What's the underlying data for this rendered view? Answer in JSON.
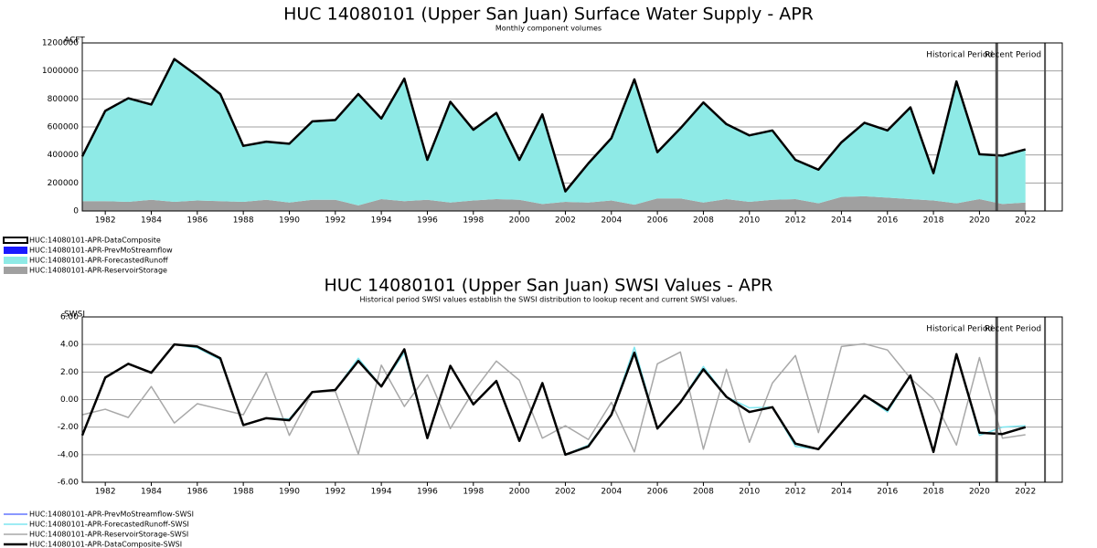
{
  "chart_data": [
    {
      "type": "area",
      "title": "HUC 14080101 (Upper San Juan) Surface Water Supply - APR",
      "subtitle": "Monthly component volumes",
      "ylabel": "ACFT",
      "x": [
        1981,
        1982,
        1983,
        1984,
        1985,
        1986,
        1987,
        1988,
        1989,
        1990,
        1991,
        1992,
        1993,
        1994,
        1995,
        1996,
        1997,
        1998,
        1999,
        2000,
        2001,
        2002,
        2003,
        2004,
        2005,
        2006,
        2007,
        2008,
        2009,
        2010,
        2011,
        2012,
        2013,
        2014,
        2015,
        2016,
        2017,
        2018,
        2019,
        2020,
        2021,
        2022
      ],
      "xlim": [
        1981,
        2023.6
      ],
      "xticks": [
        1982,
        1984,
        1986,
        1988,
        1990,
        1992,
        1994,
        1996,
        1998,
        2000,
        2002,
        2004,
        2006,
        2008,
        2010,
        2012,
        2014,
        2016,
        2018,
        2020,
        2022
      ],
      "ylim": [
        0,
        1200000
      ],
      "yticks": [
        0,
        200000,
        400000,
        600000,
        800000,
        1000000,
        1200000
      ],
      "grid": true,
      "stacked": true,
      "series": [
        {
          "name": "HUC:14080101-APR-DataComposite",
          "color": "#000000",
          "style": "line",
          "values": [
            390000,
            715000,
            805000,
            760000,
            1085000,
            965000,
            835000,
            465000,
            495000,
            480000,
            640000,
            650000,
            835000,
            660000,
            945000,
            365000,
            780000,
            580000,
            700000,
            365000,
            690000,
            140000,
            340000,
            520000,
            940000,
            420000,
            590000,
            775000,
            620000,
            540000,
            575000,
            365000,
            295000,
            490000,
            630000,
            575000,
            740000,
            270000,
            925000,
            405000,
            395000,
            440000
          ]
        },
        {
          "name": "HUC:14080101-APR-PrevMoStreamflow",
          "color": "#1a1aff",
          "style": "area",
          "values": [
            null,
            null,
            null,
            null,
            null,
            null,
            null,
            null,
            null,
            null,
            null,
            null,
            null,
            null,
            null,
            null,
            null,
            null,
            null,
            null,
            null,
            null,
            null,
            null,
            null,
            null,
            null,
            null,
            null,
            null,
            null,
            null,
            null,
            null,
            null,
            null,
            null,
            null,
            null,
            null,
            null,
            null
          ]
        },
        {
          "name": "HUC:14080101-APR-ForecastedRunoff",
          "color": "#8eeae6",
          "style": "area",
          "values": [
            320000,
            645000,
            740000,
            680000,
            1020000,
            890000,
            765000,
            400000,
            415000,
            420000,
            560000,
            570000,
            795000,
            575000,
            875000,
            285000,
            720000,
            505000,
            615000,
            285000,
            640000,
            75000,
            280000,
            445000,
            895000,
            330000,
            500000,
            715000,
            535000,
            475000,
            495000,
            280000,
            240000,
            390000,
            525000,
            480000,
            655000,
            195000,
            870000,
            320000,
            345000,
            380000
          ]
        },
        {
          "name": "HUC:14080101-APR-ReservoirStorage",
          "color": "#a0a0a0",
          "style": "area",
          "values": [
            70000,
            70000,
            65000,
            80000,
            65000,
            75000,
            70000,
            65000,
            80000,
            60000,
            80000,
            80000,
            40000,
            85000,
            70000,
            80000,
            60000,
            75000,
            85000,
            80000,
            50000,
            65000,
            60000,
            75000,
            45000,
            90000,
            90000,
            60000,
            85000,
            65000,
            80000,
            85000,
            55000,
            100000,
            105000,
            95000,
            85000,
            75000,
            55000,
            85000,
            50000,
            60000
          ]
        }
      ],
      "annotations": [
        {
          "text": "Historical Period",
          "x": 2020.75
        },
        {
          "text": "Recent Period",
          "x": 2022.85
        }
      ]
    },
    {
      "type": "line",
      "title": "HUC 14080101 (Upper San Juan) SWSI Values - APR",
      "subtitle": "Historical period SWSI values establish the SWSI distribution to lookup recent and current SWSI values.",
      "ylabel": "SWSI",
      "x": [
        1981,
        1982,
        1983,
        1984,
        1985,
        1986,
        1987,
        1988,
        1989,
        1990,
        1991,
        1992,
        1993,
        1994,
        1995,
        1996,
        1997,
        1998,
        1999,
        2000,
        2001,
        2002,
        2003,
        2004,
        2005,
        2006,
        2007,
        2008,
        2009,
        2010,
        2011,
        2012,
        2013,
        2014,
        2015,
        2016,
        2017,
        2018,
        2019,
        2020,
        2021,
        2022
      ],
      "xlim": [
        1981,
        2023.6
      ],
      "xticks": [
        1982,
        1984,
        1986,
        1988,
        1990,
        1992,
        1994,
        1996,
        1998,
        2000,
        2002,
        2004,
        2006,
        2008,
        2010,
        2012,
        2014,
        2016,
        2018,
        2020,
        2022
      ],
      "ylim": [
        -6,
        6
      ],
      "yticks": [
        {
          "value": -6,
          "label": "-6.00"
        },
        {
          "value": -4,
          "label": "-4.00"
        },
        {
          "value": -2,
          "label": "-2.00"
        },
        {
          "value": 0,
          "label": "0.00"
        },
        {
          "value": 2,
          "label": "2.00"
        },
        {
          "value": 4,
          "label": "4.00"
        },
        {
          "value": 6,
          "label": "6.00"
        }
      ],
      "grid": true,
      "series": [
        {
          "name": "HUC:14080101-APR-PrevMoStreamflow-SWSI",
          "color": "#1530ff",
          "width": 1,
          "values": [
            null,
            null,
            null,
            null,
            null,
            null,
            null,
            null,
            null,
            null,
            null,
            null,
            null,
            null,
            null,
            null,
            null,
            null,
            null,
            null,
            null,
            null,
            null,
            null,
            null,
            null,
            null,
            null,
            null,
            null,
            null,
            null,
            null,
            null,
            null,
            null,
            null,
            null,
            null,
            null,
            null,
            null
          ]
        },
        {
          "name": "HUC:14080101-APR-ForecastedRunoff-SWSI",
          "color": "#7fe6f0",
          "width": 1.5,
          "values": [
            -2.6,
            1.6,
            2.6,
            1.95,
            4.0,
            3.75,
            2.9,
            -1.85,
            -1.35,
            -1.4,
            0.55,
            0.7,
            3.0,
            0.95,
            3.4,
            -2.8,
            2.45,
            -0.35,
            1.35,
            -3.0,
            1.2,
            -4.0,
            -3.3,
            -1.1,
            3.8,
            -2.1,
            -0.2,
            2.4,
            0.2,
            -0.6,
            -0.55,
            -3.4,
            -3.6,
            -1.65,
            0.3,
            -0.9,
            1.75,
            -3.8,
            3.3,
            -2.6,
            -2.0,
            -1.9
          ]
        },
        {
          "name": "HUC:14080101-APR-ReservoirStorage-SWSI",
          "color": "#a8a8a8",
          "width": 1.5,
          "values": [
            -1.1,
            -0.7,
            -1.3,
            0.95,
            -1.7,
            -0.3,
            -0.7,
            -1.1,
            1.95,
            -2.6,
            0.55,
            0.6,
            -3.95,
            2.5,
            -0.5,
            1.8,
            -2.1,
            0.6,
            2.8,
            1.4,
            -2.8,
            -1.9,
            -2.9,
            -0.2,
            -3.8,
            2.6,
            3.45,
            -3.6,
            2.2,
            -3.1,
            1.2,
            3.2,
            -2.4,
            3.85,
            4.05,
            3.6,
            1.55,
            0.05,
            -3.3,
            3.05,
            -2.8,
            -2.55
          ]
        },
        {
          "name": "HUC:14080101-APR-DataComposite-SWSI",
          "color": "#000000",
          "width": 2.5,
          "values": [
            -2.6,
            1.6,
            2.6,
            1.95,
            4.0,
            3.85,
            3.0,
            -1.85,
            -1.35,
            -1.5,
            0.55,
            0.7,
            2.8,
            0.95,
            3.65,
            -2.8,
            2.45,
            -0.35,
            1.35,
            -3.0,
            1.2,
            -4.0,
            -3.4,
            -1.1,
            3.4,
            -2.1,
            -0.2,
            2.2,
            0.2,
            -0.9,
            -0.55,
            -3.2,
            -3.6,
            -1.65,
            0.3,
            -0.75,
            1.75,
            -3.8,
            3.3,
            -2.4,
            -2.5,
            -2.0
          ]
        }
      ],
      "annotations": [
        {
          "text": "Historical Period",
          "x": 2020.75
        },
        {
          "text": "Recent Period",
          "x": 2022.85
        }
      ]
    }
  ]
}
